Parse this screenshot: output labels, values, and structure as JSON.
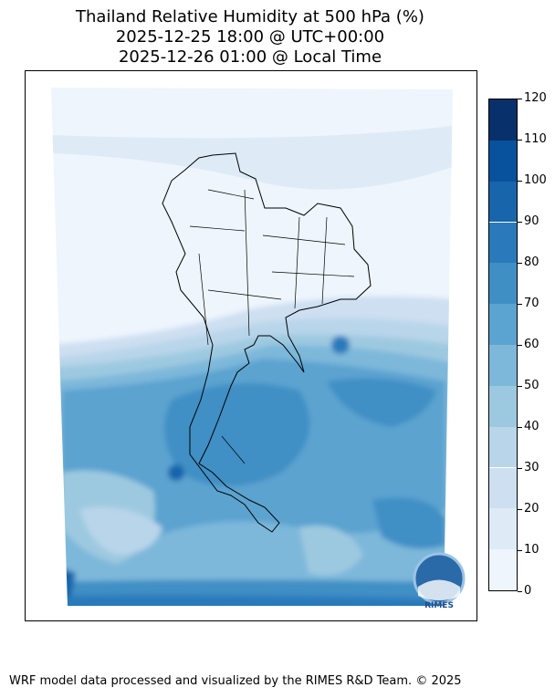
{
  "title": {
    "line1": "Thailand Relative Humidity at 500 hPa (%)",
    "line2": "2025-12-25 18:00 @ UTC+00:00",
    "line3": "2025-12-26 01:00 @ Local Time"
  },
  "colorbar": {
    "ticks": [
      "0",
      "10",
      "20",
      "30",
      "40",
      "50",
      "60",
      "70",
      "80",
      "90",
      "100",
      "110",
      "120"
    ],
    "colors": [
      "#eef5fc",
      "#deebf7",
      "#cddff1",
      "#b8d5ea",
      "#9dc9e0",
      "#7db8da",
      "#5ba3d0",
      "#3f8fc5",
      "#2a7abb",
      "#1865ac",
      "#08519c",
      "#08306b"
    ]
  },
  "logo": {
    "text": "RIMES",
    "ring_text": "Regional Early Warning System"
  },
  "footer": "WRF model data processed and visualized by the RIMES R&D Team. © 2025"
}
